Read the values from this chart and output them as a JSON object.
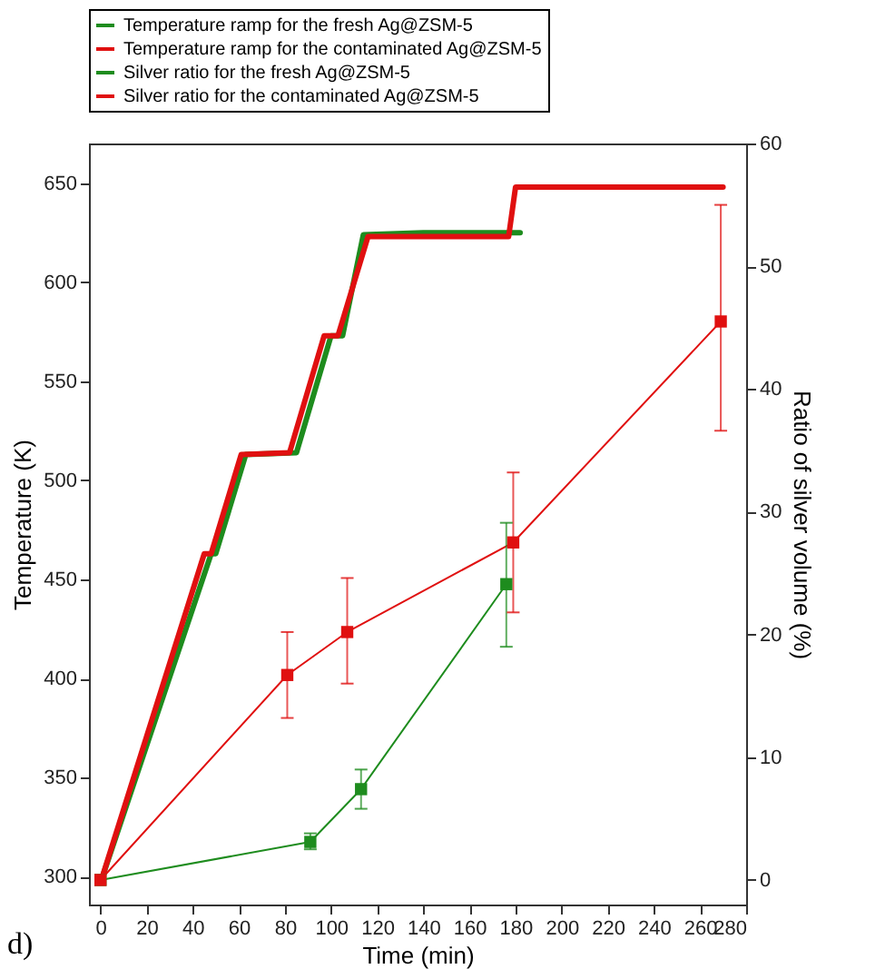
{
  "chart_data": {
    "type": "line",
    "xlabel": "Time (min)",
    "ylabel": "Temperature (K)",
    "y2label": "Ratio of silver volume  (%)",
    "xlim": [
      -5,
      280
    ],
    "xticks": [
      0,
      20,
      40,
      60,
      80,
      100,
      120,
      140,
      160,
      180,
      200,
      220,
      240,
      260,
      280
    ],
    "ylim": [
      286,
      670
    ],
    "yticks": [
      300,
      350,
      400,
      450,
      500,
      550,
      600,
      650
    ],
    "y2lim": [
      -2,
      60
    ],
    "y2ticks": [
      0,
      10,
      20,
      30,
      40,
      50,
      60
    ],
    "legend": "top",
    "grid": false,
    "annotations": [
      "d)"
    ],
    "series": [
      {
        "name": "Temperature ramp for the fresh Ag@ZSM-5",
        "color": "#1e8c1e",
        "marker": "none",
        "x": [
          0,
          48,
          50,
          63,
          85,
          100,
          105,
          114,
          140,
          182
        ],
        "values": [
          297,
          463,
          463,
          513,
          514,
          573,
          573,
          624,
          625,
          625
        ]
      },
      {
        "name": "Temperature ramp for the contaminated Ag@ZSM-5",
        "color": "#e01010",
        "marker": "none",
        "x": [
          0,
          45,
          48,
          61,
          82,
          97,
          103,
          116,
          177,
          180,
          270
        ],
        "values": [
          297,
          463,
          463,
          513,
          514,
          573,
          573,
          623,
          623,
          648,
          648
        ]
      },
      {
        "name": "Silver ratio for the fresh Ag@ZSM-5",
        "color": "#1e8c1e",
        "marker": "square",
        "axis": "y2",
        "x": [
          0,
          91,
          113,
          176
        ],
        "values": [
          0,
          3.1,
          7.4,
          24.1
        ],
        "errors": [
          null,
          [
            2.5,
            3.8
          ],
          [
            5.8,
            9.0
          ],
          [
            19.0,
            29.1
          ]
        ]
      },
      {
        "name": "Silver ratio for the contaminated Ag@ZSM-5",
        "color": "#e01010",
        "marker": "square",
        "axis": "y2",
        "x": [
          0,
          81,
          107,
          179,
          269
        ],
        "values": [
          0,
          16.7,
          20.2,
          27.5,
          45.5
        ],
        "errors": [
          null,
          [
            13.2,
            20.2
          ],
          [
            16.0,
            24.6
          ],
          [
            21.8,
            33.2
          ],
          [
            36.6,
            55.0
          ]
        ]
      }
    ]
  }
}
